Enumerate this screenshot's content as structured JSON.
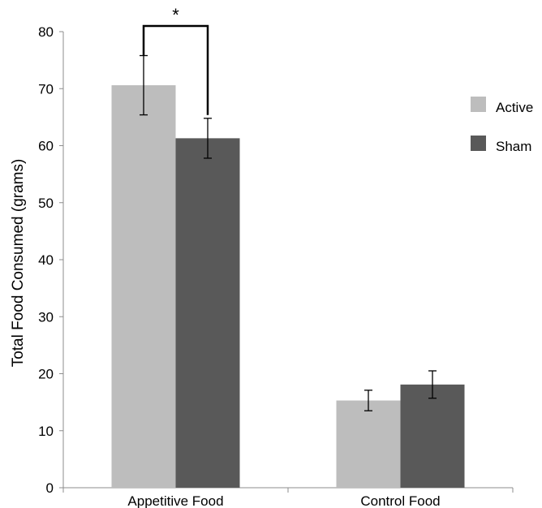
{
  "chart_data": {
    "type": "bar",
    "categories": [
      "Appetitive Food",
      "Control Food"
    ],
    "series": [
      {
        "name": "Active",
        "values": [
          70.6,
          15.3
        ],
        "error": [
          5.2,
          1.8
        ],
        "color": "#bdbdbd"
      },
      {
        "name": "Sham",
        "values": [
          61.3,
          18.1
        ],
        "error": [
          3.5,
          2.4
        ],
        "color": "#595959"
      }
    ],
    "ylabel": "Total Food Consumed (grams)",
    "xlabel": "",
    "ylim": [
      0,
      80
    ],
    "yticks": [
      0,
      10,
      20,
      30,
      40,
      50,
      60,
      70,
      80
    ],
    "grid": false,
    "legend_position": "right",
    "annotation": {
      "text": "*",
      "category_index": 0,
      "bracket_top_value": 81,
      "between_series": [
        0,
        1
      ]
    }
  }
}
